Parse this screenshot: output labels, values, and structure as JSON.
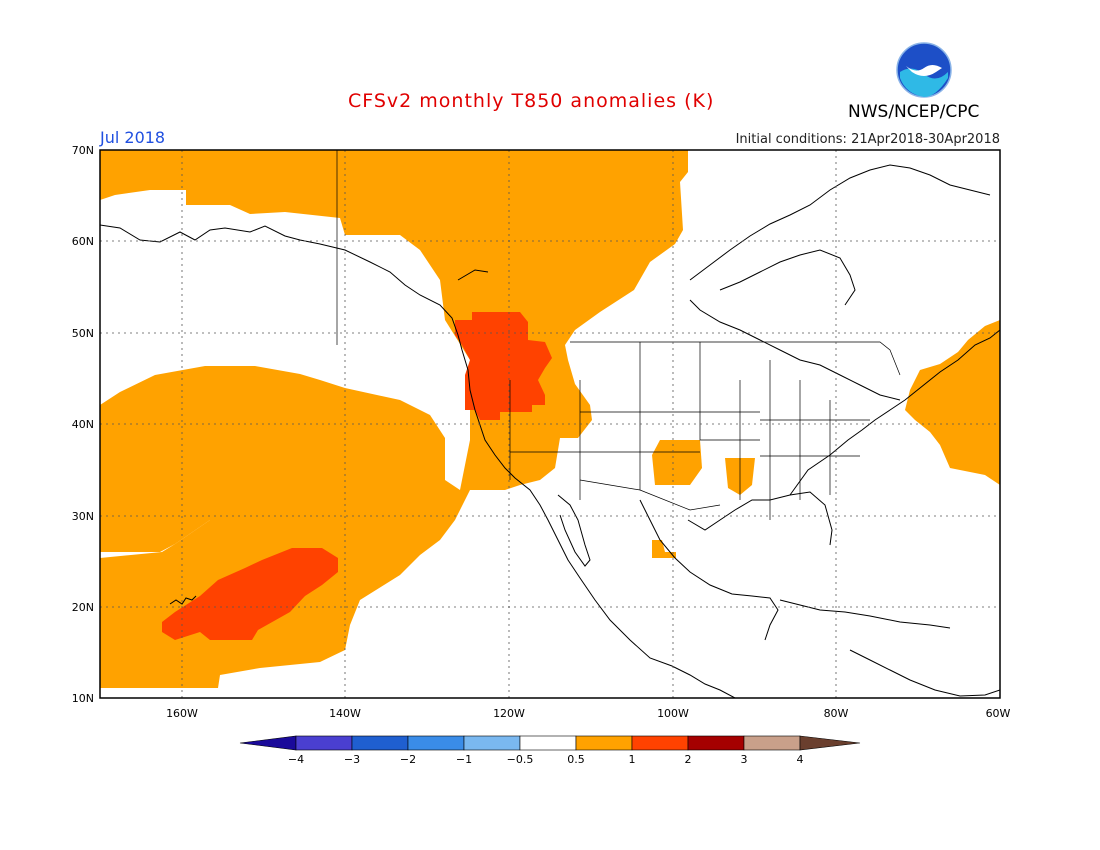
{
  "header": {
    "title": "CFSv2 monthly T850 anomalies (K)",
    "month": "Jul 2018",
    "initial_conditions": "Initial conditions: 21Apr2018-30Apr2018",
    "agency": "NWS/NCEP/CPC",
    "logo_text": "NOAA"
  },
  "map": {
    "lon_range": [
      -170,
      -60
    ],
    "lat_range": [
      10,
      70
    ],
    "lat_labels": [
      "10N",
      "20N",
      "30N",
      "40N",
      "50N",
      "60N",
      "70N"
    ],
    "lon_labels": [
      "160W",
      "140W",
      "120W",
      "100W",
      "80W",
      "60W"
    ]
  },
  "legend": {
    "bins": [
      "#1a0a9a",
      "#4a3fd0",
      "#1f5fd0",
      "#3a8ce8",
      "#7ab8f0",
      "#ffffff",
      "#ffa200",
      "#ff4200",
      "#a50000",
      "#c9a08a",
      "#6a3f2e"
    ],
    "labels": [
      "−4",
      "−3",
      "−2",
      "−1",
      "−0.5",
      "0.5",
      "1",
      "2",
      "3",
      "4"
    ]
  },
  "colors": {
    "anomaly_0_5_to_1": "#ffa200",
    "anomaly_1_to_2": "#ff4200",
    "title": "#e00000",
    "month": "#1f4fe0"
  }
}
